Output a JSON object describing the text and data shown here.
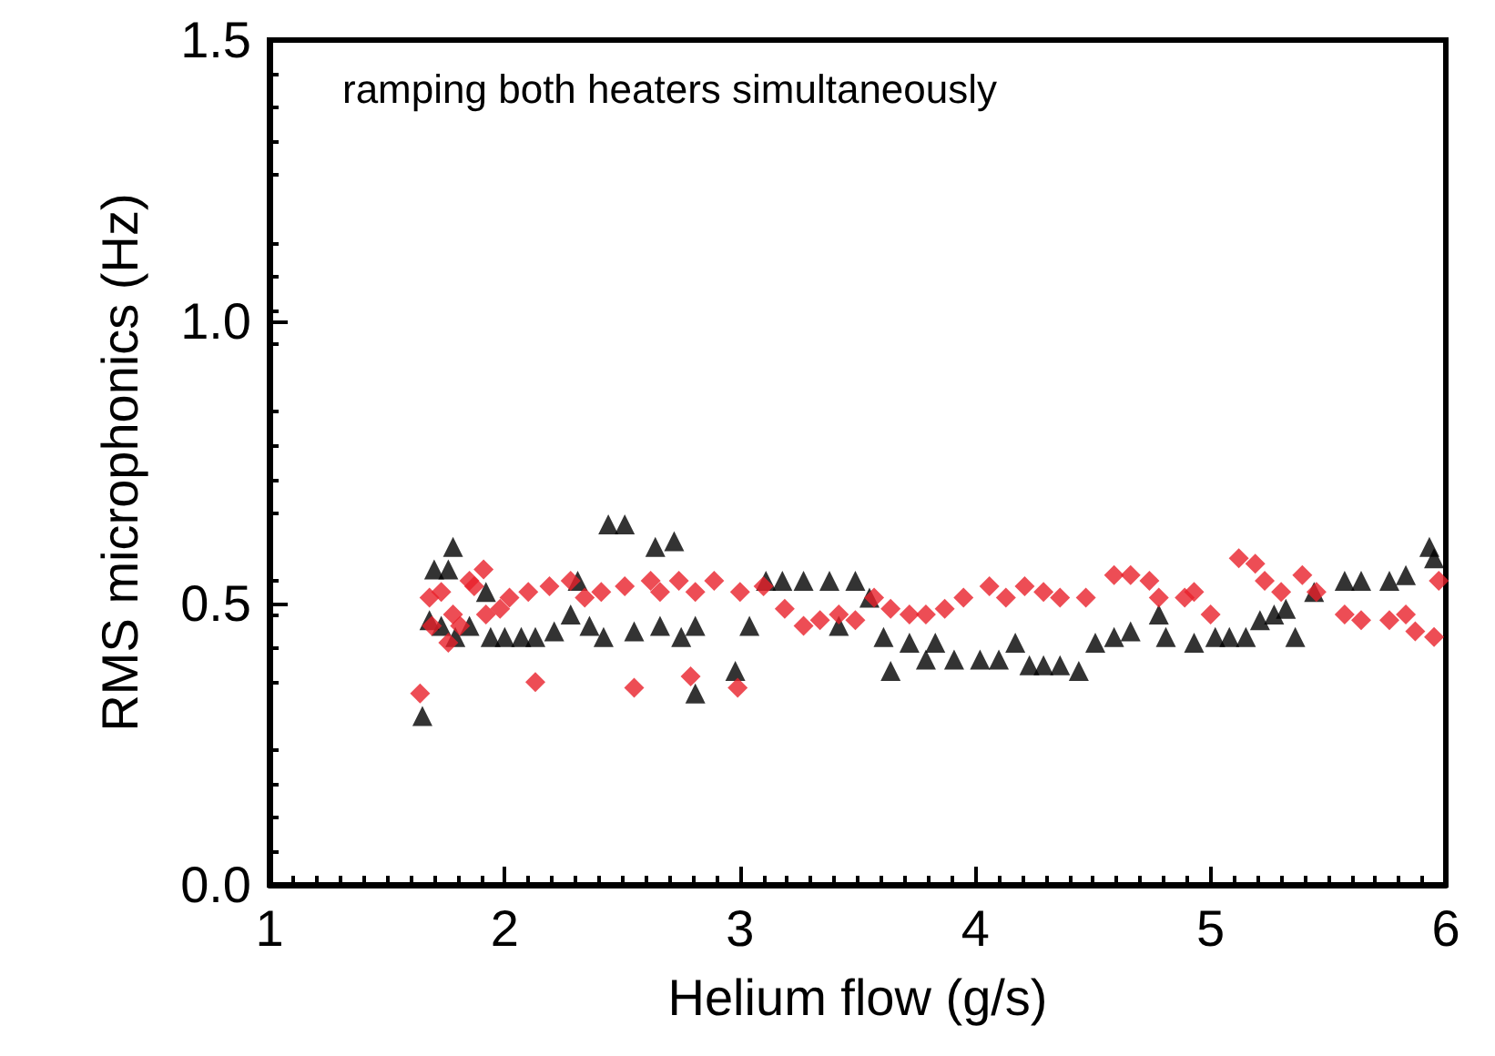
{
  "chart_data": {
    "type": "scatter",
    "xlabel": "Helium flow (g/s)",
    "ylabel": "RMS microphonics (Hz)",
    "annotations": [
      "ramping both heaters simultaneously"
    ],
    "xlim": [
      1,
      6
    ],
    "xticks": [
      1,
      2,
      3,
      4,
      5,
      6
    ],
    "ylim": [
      0,
      1.5
    ],
    "yticks": [
      {
        "value": 0,
        "label": "0.0"
      },
      {
        "value": 0.5,
        "label": "0.5"
      },
      {
        "value": 1,
        "label": "1.0"
      },
      {
        "value": 1.5,
        "label": "1.5"
      }
    ],
    "series": [
      {
        "color": "#000000",
        "marker": "triangle",
        "x": [
          1.65,
          1.68,
          1.7,
          1.73,
          1.76,
          1.78,
          1.79,
          1.85,
          1.92,
          1.94,
          2.0,
          2.07,
          2.13,
          2.21,
          2.28,
          2.31,
          2.36,
          2.42,
          2.44,
          2.51,
          2.55,
          2.64,
          2.66,
          2.72,
          2.75,
          2.81,
          2.81,
          2.98,
          3.04,
          3.11,
          3.18,
          3.27,
          3.38,
          3.42,
          3.49,
          3.55,
          3.61,
          3.64,
          3.72,
          3.79,
          3.83,
          3.91,
          4.02,
          4.1,
          4.17,
          4.23,
          4.29,
          4.36,
          4.44,
          4.51,
          4.59,
          4.66,
          4.78,
          4.81,
          4.93,
          5.02,
          5.08,
          5.15,
          5.21,
          5.27,
          5.32,
          5.36,
          5.44,
          5.57,
          5.64,
          5.76,
          5.83,
          5.93,
          5.95
        ],
        "values": [
          0.3,
          0.47,
          0.56,
          0.46,
          0.56,
          0.6,
          0.44,
          0.46,
          0.52,
          0.44,
          0.44,
          0.44,
          0.44,
          0.45,
          0.48,
          0.54,
          0.46,
          0.44,
          0.64,
          0.64,
          0.45,
          0.6,
          0.46,
          0.61,
          0.44,
          0.46,
          0.34,
          0.38,
          0.46,
          0.54,
          0.54,
          0.54,
          0.54,
          0.46,
          0.54,
          0.51,
          0.44,
          0.38,
          0.43,
          0.4,
          0.43,
          0.4,
          0.4,
          0.4,
          0.43,
          0.39,
          0.39,
          0.39,
          0.38,
          0.43,
          0.44,
          0.45,
          0.48,
          0.44,
          0.43,
          0.44,
          0.44,
          0.44,
          0.47,
          0.48,
          0.49,
          0.44,
          0.52,
          0.54,
          0.54,
          0.54,
          0.55,
          0.6,
          0.58
        ]
      },
      {
        "color": "#e8202a",
        "marker": "diamond",
        "x": [
          1.64,
          1.68,
          1.69,
          1.73,
          1.76,
          1.78,
          1.81,
          1.85,
          1.87,
          1.91,
          1.92,
          1.98,
          2.02,
          2.1,
          2.13,
          2.19,
          2.28,
          2.34,
          2.41,
          2.55,
          2.51,
          2.62,
          2.66,
          2.74,
          2.79,
          2.81,
          2.89,
          2.99,
          3.0,
          3.1,
          3.19,
          3.27,
          3.34,
          3.42,
          3.49,
          3.57,
          3.64,
          3.72,
          3.79,
          3.87,
          3.95,
          4.06,
          4.13,
          4.21,
          4.29,
          4.36,
          4.47,
          4.59,
          4.66,
          4.74,
          4.78,
          4.89,
          4.93,
          5.0,
          5.12,
          5.19,
          5.23,
          5.3,
          5.39,
          5.45,
          5.57,
          5.64,
          5.76,
          5.83,
          5.87,
          5.95,
          5.97
        ],
        "values": [
          0.34,
          0.51,
          0.46,
          0.52,
          0.43,
          0.48,
          0.46,
          0.54,
          0.53,
          0.56,
          0.48,
          0.49,
          0.51,
          0.52,
          0.36,
          0.53,
          0.54,
          0.51,
          0.52,
          0.35,
          0.53,
          0.54,
          0.52,
          0.54,
          0.37,
          0.52,
          0.54,
          0.35,
          0.52,
          0.53,
          0.49,
          0.46,
          0.47,
          0.48,
          0.47,
          0.51,
          0.49,
          0.48,
          0.48,
          0.49,
          0.51,
          0.53,
          0.51,
          0.53,
          0.52,
          0.51,
          0.51,
          0.55,
          0.55,
          0.54,
          0.51,
          0.51,
          0.52,
          0.48,
          0.58,
          0.57,
          0.54,
          0.52,
          0.55,
          0.52,
          0.48,
          0.47,
          0.47,
          0.48,
          0.45,
          0.44,
          0.54
        ]
      }
    ]
  }
}
